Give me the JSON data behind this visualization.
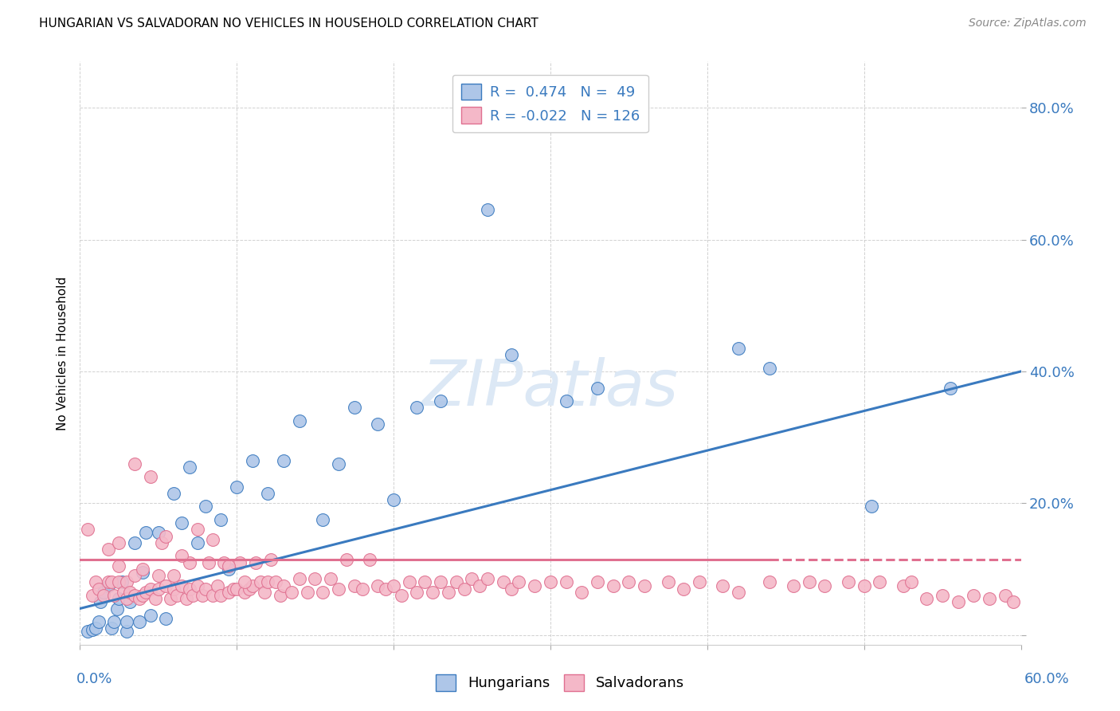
{
  "title": "HUNGARIAN VS SALVADORAN NO VEHICLES IN HOUSEHOLD CORRELATION CHART",
  "source": "Source: ZipAtlas.com",
  "ylabel": "No Vehicles in Household",
  "xlim": [
    0.0,
    0.6
  ],
  "ylim": [
    -0.015,
    0.87
  ],
  "ytick_vals": [
    0.0,
    0.2,
    0.4,
    0.6,
    0.8
  ],
  "ytick_labels": [
    "",
    "20.0%",
    "40.0%",
    "60.0%",
    "80.0%"
  ],
  "hungarian_color": "#aec6e8",
  "salvadoran_color": "#f4b8c8",
  "hungarian_line_color": "#3a7abf",
  "salvadoran_line_color": "#e07090",
  "background_color": "#ffffff",
  "watermark_color": "#dce8f5",
  "hun_line_start_y": 0.04,
  "hun_line_end_y": 0.4,
  "sal_line_y": 0.115,
  "sal_line_dashed_x": 0.44,
  "hun_x": [
    0.005,
    0.008,
    0.01,
    0.012,
    0.013,
    0.015,
    0.018,
    0.02,
    0.022,
    0.024,
    0.025,
    0.027,
    0.03,
    0.03,
    0.032,
    0.035,
    0.038,
    0.04,
    0.042,
    0.045,
    0.05,
    0.055,
    0.06,
    0.065,
    0.07,
    0.075,
    0.08,
    0.09,
    0.095,
    0.1,
    0.11,
    0.12,
    0.13,
    0.14,
    0.155,
    0.165,
    0.175,
    0.19,
    0.2,
    0.215,
    0.23,
    0.26,
    0.275,
    0.31,
    0.33,
    0.42,
    0.44,
    0.505,
    0.555
  ],
  "hun_y": [
    0.005,
    0.008,
    0.01,
    0.02,
    0.05,
    0.065,
    0.075,
    0.01,
    0.02,
    0.04,
    0.055,
    0.08,
    0.005,
    0.02,
    0.05,
    0.14,
    0.02,
    0.095,
    0.155,
    0.03,
    0.155,
    0.025,
    0.215,
    0.17,
    0.255,
    0.14,
    0.195,
    0.175,
    0.1,
    0.225,
    0.265,
    0.215,
    0.265,
    0.325,
    0.175,
    0.26,
    0.345,
    0.32,
    0.205,
    0.345,
    0.355,
    0.645,
    0.425,
    0.355,
    0.375,
    0.435,
    0.405,
    0.195,
    0.375
  ],
  "sal_x": [
    0.005,
    0.008,
    0.01,
    0.012,
    0.015,
    0.018,
    0.02,
    0.022,
    0.025,
    0.025,
    0.028,
    0.03,
    0.03,
    0.032,
    0.035,
    0.035,
    0.038,
    0.04,
    0.04,
    0.042,
    0.045,
    0.048,
    0.05,
    0.05,
    0.052,
    0.055,
    0.058,
    0.06,
    0.06,
    0.062,
    0.065,
    0.068,
    0.07,
    0.07,
    0.072,
    0.075,
    0.078,
    0.08,
    0.082,
    0.085,
    0.088,
    0.09,
    0.092,
    0.095,
    0.098,
    0.1,
    0.102,
    0.105,
    0.108,
    0.11,
    0.112,
    0.115,
    0.118,
    0.12,
    0.122,
    0.125,
    0.128,
    0.13,
    0.135,
    0.14,
    0.145,
    0.15,
    0.155,
    0.16,
    0.165,
    0.17,
    0.175,
    0.18,
    0.185,
    0.19,
    0.195,
    0.2,
    0.205,
    0.21,
    0.215,
    0.22,
    0.225,
    0.23,
    0.235,
    0.24,
    0.245,
    0.25,
    0.255,
    0.26,
    0.27,
    0.275,
    0.28,
    0.29,
    0.3,
    0.31,
    0.32,
    0.33,
    0.34,
    0.35,
    0.36,
    0.375,
    0.385,
    0.395,
    0.41,
    0.42,
    0.44,
    0.455,
    0.465,
    0.475,
    0.49,
    0.5,
    0.51,
    0.525,
    0.53,
    0.54,
    0.55,
    0.56,
    0.57,
    0.58,
    0.59,
    0.595,
    0.018,
    0.025,
    0.035,
    0.045,
    0.055,
    0.065,
    0.075,
    0.085,
    0.095,
    0.105
  ],
  "sal_y": [
    0.16,
    0.06,
    0.08,
    0.07,
    0.06,
    0.08,
    0.08,
    0.06,
    0.08,
    0.105,
    0.065,
    0.055,
    0.08,
    0.065,
    0.06,
    0.09,
    0.055,
    0.06,
    0.1,
    0.065,
    0.07,
    0.055,
    0.07,
    0.09,
    0.14,
    0.075,
    0.055,
    0.07,
    0.09,
    0.06,
    0.075,
    0.055,
    0.07,
    0.11,
    0.06,
    0.075,
    0.06,
    0.07,
    0.11,
    0.06,
    0.075,
    0.06,
    0.11,
    0.065,
    0.07,
    0.07,
    0.11,
    0.065,
    0.07,
    0.075,
    0.11,
    0.08,
    0.065,
    0.08,
    0.115,
    0.08,
    0.06,
    0.075,
    0.065,
    0.085,
    0.065,
    0.085,
    0.065,
    0.085,
    0.07,
    0.115,
    0.075,
    0.07,
    0.115,
    0.075,
    0.07,
    0.075,
    0.06,
    0.08,
    0.065,
    0.08,
    0.065,
    0.08,
    0.065,
    0.08,
    0.07,
    0.085,
    0.075,
    0.085,
    0.08,
    0.07,
    0.08,
    0.075,
    0.08,
    0.08,
    0.065,
    0.08,
    0.075,
    0.08,
    0.075,
    0.08,
    0.07,
    0.08,
    0.075,
    0.065,
    0.08,
    0.075,
    0.08,
    0.075,
    0.08,
    0.075,
    0.08,
    0.075,
    0.08,
    0.055,
    0.06,
    0.05,
    0.06,
    0.055,
    0.06,
    0.05,
    0.13,
    0.14,
    0.26,
    0.24,
    0.15,
    0.12,
    0.16,
    0.145,
    0.105,
    0.08
  ]
}
